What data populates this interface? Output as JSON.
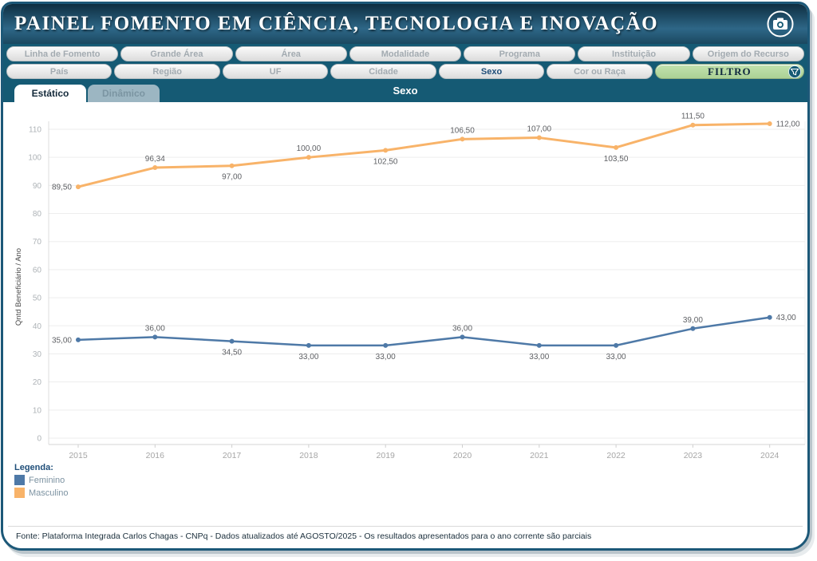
{
  "header": {
    "title": "PAINEL FOMENTO EM CIÊNCIA, TECNOLOGIA E INOVAÇÃO"
  },
  "filters": {
    "row1": [
      "Linha de Fomento",
      "Grande Área",
      "Área",
      "Modalidade",
      "Programa",
      "Instituição",
      "Origem do Recurso"
    ],
    "row2": [
      "País",
      "Região",
      "UF",
      "Cidade",
      "Sexo",
      "Cor ou Raça"
    ],
    "active_filter": "Sexo",
    "filtro_label": "FILTRO"
  },
  "tabs": {
    "static": "Estático",
    "dynamic": "Dinâmico",
    "chart_title": "Sexo"
  },
  "chart_data": {
    "type": "line",
    "x": [
      2015,
      2016,
      2017,
      2018,
      2019,
      2020,
      2021,
      2022,
      2023,
      2024
    ],
    "series": [
      {
        "name": "Feminino",
        "color": "#4e79a7",
        "values": [
          35.0,
          36.0,
          34.5,
          33.0,
          33.0,
          36.0,
          33.0,
          33.0,
          39.0,
          43.0
        ],
        "labels": [
          "35,00",
          "36,00",
          "34,50",
          "33,00",
          "33,00",
          "36,00",
          "33,00",
          "33,00",
          "39,00",
          "43,00"
        ],
        "label_positions": [
          "left",
          "above",
          "below",
          "below",
          "below",
          "above",
          "below",
          "below",
          "above",
          "right"
        ]
      },
      {
        "name": "Masculino",
        "color": "#f8b369",
        "values": [
          89.5,
          96.34,
          97.0,
          100.0,
          102.5,
          106.5,
          107.0,
          103.5,
          111.5,
          112.0
        ],
        "labels": [
          "89,50",
          "96,34",
          "97,00",
          "100,00",
          "102,50",
          "106,50",
          "107,00",
          "103,50",
          "111,50",
          "112,00"
        ],
        "label_positions": [
          "left",
          "above",
          "below",
          "above",
          "below",
          "above",
          "above",
          "below",
          "above",
          "right"
        ]
      }
    ],
    "ylabel": "Qntd Beneficiário / Ano",
    "ylim": [
      0,
      115
    ],
    "yticks": [
      0,
      10,
      20,
      30,
      40,
      50,
      60,
      70,
      80,
      90,
      100,
      110
    ],
    "grid": true,
    "legend_position": "bottom-left"
  },
  "legend": {
    "title": "Legenda:",
    "items": [
      {
        "label": "Feminino",
        "color": "#4e79a7"
      },
      {
        "label": "Masculino",
        "color": "#f8b369"
      }
    ]
  },
  "footer": {
    "source": "Fonte: Plataforma Integrada Carlos Chagas - CNPq - Dados atualizados até AGOSTO/2025 - Os resultados apresentados para o ano corrente são parciais"
  },
  "colors": {
    "teal": "#155a74",
    "header_dark": "#0e2e41",
    "filtro_green": "#b5d9a0",
    "active_text": "#1f4e79"
  }
}
